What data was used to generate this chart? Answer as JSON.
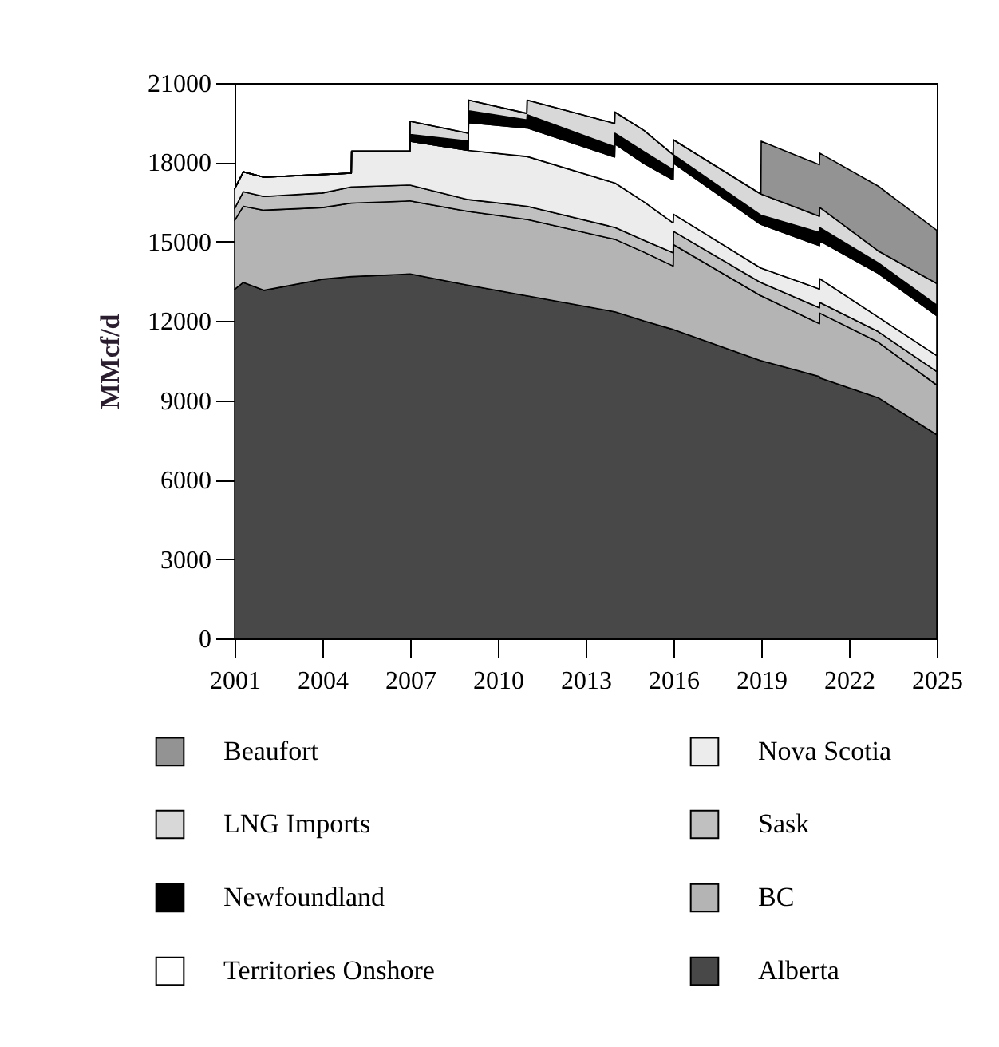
{
  "chart_data": {
    "type": "area",
    "stacked": true,
    "ylabel": "MMcf/d",
    "legend": "bottom",
    "x": [
      2001,
      2001.3,
      2002,
      2004,
      2004.99,
      2005,
      2006.99,
      2007,
      2008.99,
      2009,
      2010.99,
      2011,
      2013.99,
      2014,
      2015,
      2015.99,
      2016,
      2018.99,
      2019,
      2020.99,
      2021,
      2023,
      2025
    ],
    "xlim": [
      2001,
      2025
    ],
    "xticks": [
      2001,
      2004,
      2007,
      2010,
      2013,
      2016,
      2019,
      2022,
      2025
    ],
    "ylim": [
      0,
      21000
    ],
    "yticks": [
      0,
      3000,
      6000,
      9000,
      12000,
      15000,
      18000,
      21000
    ],
    "series": [
      {
        "name": "Alberta",
        "color": "#484848",
        "values": [
          13200,
          13460,
          13160,
          13580,
          13680,
          13680,
          13780,
          13780,
          13350,
          13350,
          12950,
          12950,
          12350,
          12350,
          12000,
          11680,
          11680,
          10500,
          10500,
          9900,
          9850,
          9100,
          7700
        ]
      },
      {
        "name": "BC",
        "color": "#b4b4b4",
        "values": [
          2600,
          2880,
          3030,
          2710,
          2780,
          2780,
          2760,
          2760,
          2790,
          2790,
          2890,
          2890,
          2740,
          2740,
          2600,
          2400,
          3210,
          2450,
          2450,
          2000,
          2450,
          2100,
          1880
        ]
      },
      {
        "name": "Sask",
        "color": "#c0c0c0",
        "values": [
          450,
          550,
          520,
          550,
          610,
          610,
          600,
          600,
          450,
          450,
          500,
          500,
          450,
          450,
          450,
          500,
          500,
          500,
          500,
          600,
          400,
          400,
          510
        ]
      },
      {
        "name": "Nova Scotia",
        "color": "#ececec",
        "values": [
          750,
          750,
          730,
          700,
          520,
          1350,
          1280,
          1660,
          1860,
          1860,
          1880,
          1880,
          1680,
          1680,
          1450,
          1130,
          650,
          550,
          550,
          710,
          900,
          550,
          600
        ]
      },
      {
        "name": "Territories Onshore",
        "color": "#ffffff",
        "values": [
          0,
          0,
          0,
          0,
          0,
          0,
          0,
          0,
          0,
          1050,
          1080,
          1080,
          980,
          1480,
          1450,
          1630,
          1930,
          1650,
          1650,
          1640,
          1430,
          1650,
          1510
        ]
      },
      {
        "name": "Newfoundland",
        "color": "#000000",
        "values": [
          0,
          0,
          0,
          0,
          0,
          0,
          0,
          250,
          350,
          450,
          300,
          500,
          390,
          400,
          450,
          380,
          320,
          350,
          350,
          500,
          500,
          400,
          400
        ]
      },
      {
        "name": "LNG Imports",
        "color": "#d8d8d8",
        "values": [
          0,
          0,
          0,
          0,
          0,
          0,
          0,
          500,
          300,
          400,
          250,
          550,
          880,
          800,
          800,
          570,
          560,
          800,
          800,
          610,
          770,
          450,
          820
        ]
      },
      {
        "name": "Beaufort",
        "color": "#939393",
        "values": [
          0,
          0,
          0,
          0,
          0,
          0,
          0,
          0,
          0,
          0,
          0,
          0,
          0,
          0,
          0,
          0,
          0,
          0,
          2000,
          1950,
          2050,
          2450,
          2010
        ]
      }
    ]
  }
}
